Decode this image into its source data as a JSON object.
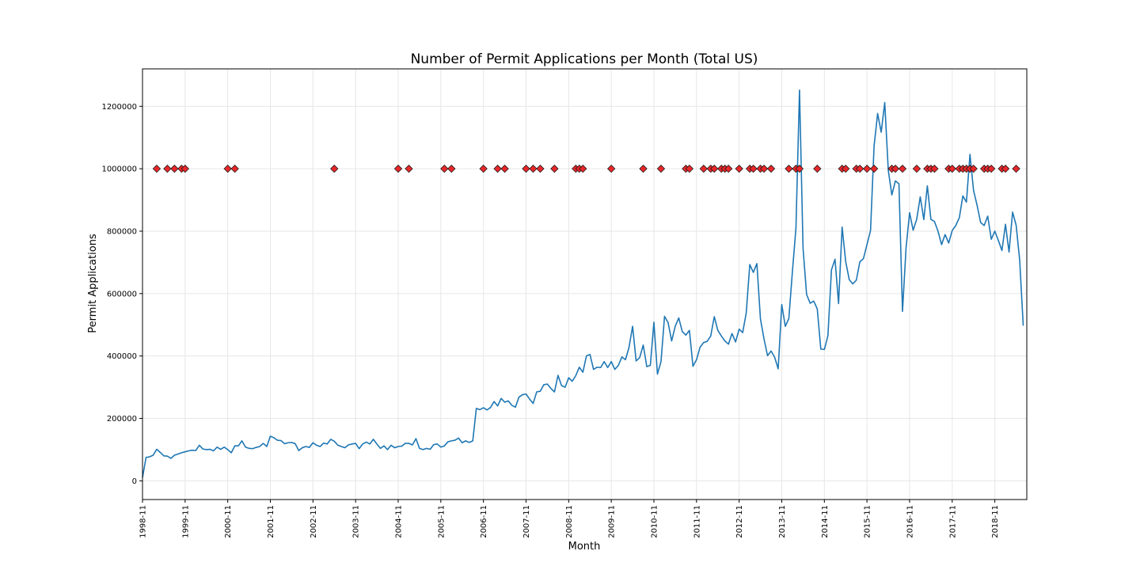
{
  "chart_data": {
    "type": "line",
    "title": "Number of Permit Applications per Month (Total US)",
    "xlabel": "Month",
    "ylabel": "Permit Applications",
    "grid": true,
    "x_start": "1998-11",
    "x_end": "2019-07",
    "xlim": [
      "1998-11",
      "2019-08"
    ],
    "ylim": [
      -60000,
      1320000
    ],
    "x_ticks": [
      "1998-11",
      "1999-11",
      "2000-11",
      "2001-11",
      "2002-11",
      "2003-11",
      "2004-11",
      "2005-11",
      "2006-11",
      "2007-11",
      "2008-11",
      "2009-11",
      "2010-11",
      "2011-11",
      "2012-11",
      "2013-11",
      "2014-11",
      "2015-11",
      "2016-11",
      "2017-11",
      "2018-11"
    ],
    "y_ticks": [
      "0",
      "200000",
      "400000",
      "600000",
      "800000",
      "1000000",
      "1200000"
    ],
    "series": [
      {
        "color": "#1f77b4",
        "values": [
          10000,
          75000,
          77000,
          82000,
          101000,
          91000,
          80000,
          79000,
          72000,
          82000,
          86000,
          90000,
          93000,
          96000,
          98000,
          97000,
          114000,
          102000,
          100000,
          101000,
          96000,
          108000,
          101000,
          108000,
          100000,
          90000,
          112000,
          112000,
          128000,
          108000,
          104000,
          103000,
          107000,
          110000,
          120000,
          110000,
          143000,
          138000,
          130000,
          129000,
          119000,
          122000,
          123000,
          119000,
          97000,
          106000,
          110000,
          107000,
          122000,
          114000,
          110000,
          121000,
          118000,
          133000,
          127000,
          114000,
          110000,
          106000,
          115000,
          118000,
          120000,
          103000,
          118000,
          124000,
          118000,
          133000,
          118000,
          104000,
          112000,
          100000,
          114000,
          106000,
          110000,
          111000,
          120000,
          120000,
          115000,
          135000,
          104000,
          100000,
          104000,
          101000,
          116000,
          118000,
          108000,
          112000,
          125000,
          128000,
          130000,
          137000,
          122000,
          128000,
          123000,
          128000,
          232000,
          228000,
          234000,
          227000,
          235000,
          254000,
          240000,
          264000,
          252000,
          256000,
          242000,
          236000,
          268000,
          276000,
          278000,
          262000,
          248000,
          285000,
          287000,
          308000,
          310000,
          296000,
          285000,
          338000,
          305000,
          300000,
          330000,
          319000,
          337000,
          364000,
          348000,
          400000,
          405000,
          357000,
          364000,
          363000,
          382000,
          363000,
          382000,
          357000,
          370000,
          397000,
          388000,
          428000,
          495000,
          384000,
          395000,
          435000,
          366000,
          370000,
          508000,
          342000,
          382000,
          527000,
          507000,
          448000,
          495000,
          522000,
          478000,
          467000,
          482000,
          367000,
          388000,
          428000,
          443000,
          447000,
          464000,
          526000,
          482000,
          464000,
          448000,
          438000,
          472000,
          445000,
          486000,
          475000,
          538000,
          693000,
          668000,
          696000,
          519000,
          455000,
          401000,
          416000,
          396000,
          359000,
          565000,
          495000,
          520000,
          670000,
          810000,
          1252000,
          745000,
          597000,
          569000,
          576000,
          551000,
          422000,
          421000,
          465000,
          676000,
          710000,
          568000,
          813000,
          703000,
          645000,
          631000,
          643000,
          702000,
          712000,
          757000,
          802000,
          1073000,
          1177000,
          1117000,
          1212000,
          995000,
          916000,
          961000,
          952000,
          543000,
          746000,
          859000,
          803000,
          838000,
          910000,
          837000,
          945000,
          838000,
          831000,
          800000,
          757000,
          789000,
          762000,
          802000,
          818000,
          843000,
          913000,
          893000,
          1046000,
          931000,
          883000,
          828000,
          818000,
          848000,
          774000,
          800000,
          770000,
          738000,
          822000,
          733000,
          861000,
          819000,
          707000,
          497000
        ]
      }
    ],
    "markers": {
      "color": "#e8272a",
      "edge_color": "#1a1a1a",
      "shape": "diamond",
      "y": 1000000,
      "x": [
        "1999-03",
        "1999-06",
        "1999-08",
        "1999-10",
        "1999-11",
        "2000-11",
        "2001-01",
        "2003-05",
        "2004-11",
        "2005-02",
        "2005-12",
        "2006-02",
        "2006-11",
        "2007-03",
        "2007-05",
        "2007-11",
        "2008-01",
        "2008-03",
        "2008-07",
        "2009-01",
        "2009-02",
        "2009-03",
        "2009-11",
        "2010-08",
        "2011-01",
        "2011-08",
        "2011-09",
        "2012-01",
        "2012-03",
        "2012-04",
        "2012-06",
        "2012-07",
        "2012-08",
        "2012-11",
        "2013-02",
        "2013-03",
        "2013-05",
        "2013-06",
        "2013-08",
        "2014-01",
        "2014-03",
        "2014-04",
        "2014-09",
        "2015-04",
        "2015-05",
        "2015-08",
        "2015-09",
        "2015-11",
        "2016-01",
        "2016-06",
        "2016-07",
        "2016-09",
        "2017-01",
        "2017-04",
        "2017-05",
        "2017-06",
        "2017-10",
        "2017-11",
        "2018-01",
        "2018-02",
        "2018-03",
        "2018-04",
        "2018-05",
        "2018-08",
        "2018-09",
        "2018-10",
        "2019-01",
        "2019-02",
        "2019-05"
      ]
    }
  }
}
